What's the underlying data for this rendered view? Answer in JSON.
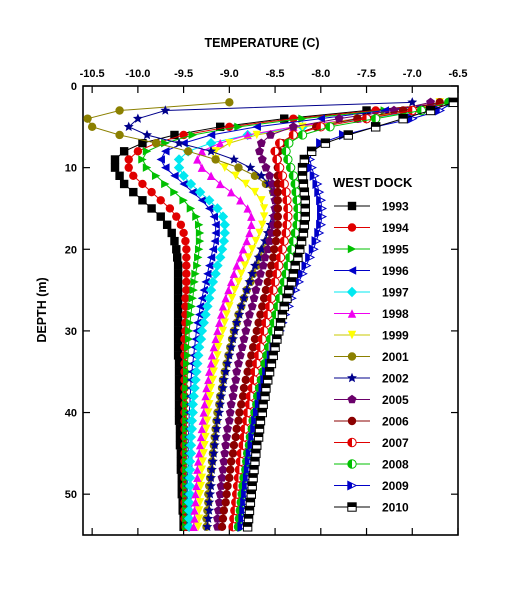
{
  "chart_data": {
    "type": "line",
    "xlabel": "TEMPERATURE (C)",
    "ylabel": "DEPTH (m)",
    "xlim": [
      -10.6,
      -6.5
    ],
    "ylim": [
      55,
      0
    ],
    "x_axis_position": "top",
    "y_inverted": true,
    "xticks": [
      -10.5,
      -10.0,
      -9.5,
      -9.0,
      -8.5,
      -8.0,
      -7.5,
      -7.0,
      -6.5
    ],
    "xtick_labels": [
      "-10.5",
      "-10.0",
      "-9.5",
      "-9.0",
      "-8.5",
      "-8.0",
      "-7.5",
      "-7.0",
      "-6.5"
    ],
    "yticks": [
      0,
      10,
      20,
      30,
      40,
      50
    ],
    "ytick_labels": [
      "0",
      "10",
      "20",
      "30",
      "40",
      "50"
    ],
    "grid": false,
    "legend_title": "WEST DOCK",
    "legend_position": "right",
    "depths": [
      2,
      3,
      4,
      5,
      6,
      7,
      8,
      9,
      10,
      11,
      12,
      13,
      14,
      15,
      16,
      17,
      18,
      19,
      20,
      21,
      22,
      23,
      24,
      25,
      26,
      27,
      28,
      29,
      30,
      31,
      32,
      33,
      34,
      35,
      36,
      37,
      38,
      39,
      40,
      41,
      42,
      43,
      44,
      45,
      46,
      47,
      48,
      49,
      50,
      51,
      52,
      53,
      54
    ],
    "series": [
      {
        "name": "1993",
        "color": "#000000",
        "marker": "square",
        "filled": true,
        "values": [
          -6.5,
          -7.5,
          -8.4,
          -9.1,
          -9.6,
          -9.95,
          -10.15,
          -10.25,
          -10.25,
          -10.2,
          -10.15,
          -10.05,
          -9.95,
          -9.85,
          -9.75,
          -9.68,
          -9.63,
          -9.6,
          -9.58,
          -9.57,
          -9.56,
          -9.56,
          -9.56,
          -9.56,
          -9.56,
          -9.56,
          -9.56,
          -9.56,
          -9.56,
          -9.56,
          -9.56,
          -9.56,
          -9.55,
          -9.55,
          -9.55,
          -9.55,
          -9.55,
          -9.55,
          -9.55,
          -9.55,
          -9.54,
          -9.54,
          -9.54,
          -9.53,
          -9.53,
          -9.53,
          -9.52,
          -9.52,
          -9.52,
          -9.51,
          -9.51,
          -9.5,
          -9.5
        ]
      },
      {
        "name": "1994",
        "color": "#e00000",
        "marker": "circle",
        "filled": true,
        "values": [
          -6.6,
          -7.4,
          -8.3,
          -9.0,
          -9.5,
          -9.8,
          -10.0,
          -10.1,
          -10.1,
          -10.05,
          -9.95,
          -9.85,
          -9.75,
          -9.65,
          -9.58,
          -9.53,
          -9.5,
          -9.48,
          -9.47,
          -9.47,
          -9.47,
          -9.47,
          -9.47,
          -9.47,
          -9.48,
          -9.48,
          -9.48,
          -9.48,
          -9.48,
          -9.49,
          -9.49,
          -9.49,
          -9.49,
          -9.49,
          -9.49,
          -9.49,
          -9.49,
          -9.49,
          -9.49,
          -9.49,
          -9.49,
          -9.49,
          -9.49,
          -9.49,
          -9.49,
          -9.49,
          -9.49,
          -9.49,
          -9.49,
          -9.49,
          -9.49,
          -9.49,
          -9.48
        ]
      },
      {
        "name": "1995",
        "color": "#00c000",
        "marker": "tri-right",
        "filled": true,
        "values": [
          -6.5,
          -7.3,
          -8.2,
          -8.9,
          -9.4,
          -9.7,
          -9.9,
          -9.95,
          -9.9,
          -9.8,
          -9.7,
          -9.6,
          -9.5,
          -9.42,
          -9.36,
          -9.33,
          -9.32,
          -9.32,
          -9.33,
          -9.34,
          -9.35,
          -9.37,
          -9.38,
          -9.39,
          -9.4,
          -9.41,
          -9.42,
          -9.43,
          -9.44,
          -9.44,
          -9.45,
          -9.45,
          -9.46,
          -9.46,
          -9.46,
          -9.47,
          -9.47,
          -9.47,
          -9.47,
          -9.47,
          -9.47,
          -9.47,
          -9.47,
          -9.47,
          -9.47,
          -9.47,
          -9.47,
          -9.47,
          -9.47,
          -9.47,
          -9.47,
          -9.47,
          -9.47
        ]
      },
      {
        "name": "1996",
        "color": "#0000c8",
        "marker": "tri-left",
        "filled": true,
        "values": [
          -6.6,
          -7.3,
          -8.0,
          -8.7,
          -9.2,
          -9.5,
          -9.7,
          -9.75,
          -9.7,
          -9.6,
          -9.5,
          -9.4,
          -9.3,
          -9.22,
          -9.17,
          -9.15,
          -9.15,
          -9.16,
          -9.18,
          -9.2,
          -9.22,
          -9.24,
          -9.26,
          -9.28,
          -9.3,
          -9.32,
          -9.33,
          -9.35,
          -9.36,
          -9.37,
          -9.38,
          -9.39,
          -9.4,
          -9.41,
          -9.42,
          -9.42,
          -9.43,
          -9.43,
          -9.44,
          -9.44,
          -9.44,
          -9.45,
          -9.45,
          -9.45,
          -9.45,
          -9.45,
          -9.46,
          -9.46,
          -9.46,
          -9.46,
          -9.46,
          -9.46,
          -9.46
        ]
      },
      {
        "name": "1997",
        "color": "#00e8f0",
        "marker": "diamond",
        "filled": true,
        "values": [
          -6.6,
          -6.9,
          -7.5,
          -8.2,
          -8.8,
          -9.2,
          -9.45,
          -9.55,
          -9.55,
          -9.5,
          -9.42,
          -9.32,
          -9.22,
          -9.13,
          -9.07,
          -9.05,
          -9.05,
          -9.06,
          -9.08,
          -9.1,
          -9.13,
          -9.15,
          -9.18,
          -9.2,
          -9.22,
          -9.24,
          -9.26,
          -9.28,
          -9.3,
          -9.31,
          -9.33,
          -9.34,
          -9.35,
          -9.36,
          -9.37,
          -9.38,
          -9.39,
          -9.4,
          -9.4,
          -9.41,
          -9.41,
          -9.42,
          -9.42,
          -9.42,
          -9.43,
          -9.43,
          -9.43,
          -9.43,
          -9.43,
          -9.44,
          -9.44,
          -9.44,
          -9.44
        ]
      },
      {
        "name": "1998",
        "color": "#f000f0",
        "marker": "tri-up",
        "filled": true,
        "values": [
          -6.7,
          -7.0,
          -7.6,
          -8.3,
          -8.8,
          -9.1,
          -9.3,
          -9.35,
          -9.3,
          -9.2,
          -9.1,
          -8.98,
          -8.88,
          -8.8,
          -8.76,
          -8.76,
          -8.78,
          -8.81,
          -8.85,
          -8.88,
          -8.92,
          -8.95,
          -8.98,
          -9.01,
          -9.04,
          -9.07,
          -9.09,
          -9.11,
          -9.13,
          -9.15,
          -9.17,
          -9.19,
          -9.2,
          -9.22,
          -9.23,
          -9.25,
          -9.26,
          -9.27,
          -9.28,
          -9.29,
          -9.3,
          -9.31,
          -9.32,
          -9.33,
          -9.34,
          -9.35,
          -9.35,
          -9.36,
          -9.37,
          -9.37,
          -9.38,
          -9.38,
          -9.39
        ]
      },
      {
        "name": "1999",
        "color": "#ffff00",
        "marker": "tri-down",
        "filled": true,
        "values": [
          -6.7,
          -7.0,
          -7.6,
          -8.2,
          -8.7,
          -9.0,
          -9.15,
          -9.15,
          -9.05,
          -8.93,
          -8.82,
          -8.72,
          -8.65,
          -8.62,
          -8.62,
          -8.64,
          -8.67,
          -8.71,
          -8.75,
          -8.79,
          -8.83,
          -8.87,
          -8.9,
          -8.94,
          -8.97,
          -9.0,
          -9.03,
          -9.05,
          -9.07,
          -9.1,
          -9.12,
          -9.13,
          -9.15,
          -9.17,
          -9.18,
          -9.2,
          -9.21,
          -9.22,
          -9.23,
          -9.24,
          -9.25,
          -9.26,
          -9.27,
          -9.28,
          -9.29,
          -9.3,
          -9.3,
          -9.31,
          -9.32,
          -9.32,
          -9.33,
          -9.33,
          -9.34
        ]
      },
      {
        "name": "2001",
        "color": "#8b8000",
        "marker": "circle",
        "filled": true,
        "values": [
          -9.0,
          -10.2,
          -10.55,
          -10.5,
          -10.2,
          -9.8,
          -9.45,
          -9.15,
          -8.9,
          -8.72,
          -8.6,
          -8.52,
          -8.48,
          -8.47,
          -8.49,
          -8.52,
          -8.55,
          -8.59,
          -8.63,
          -8.67,
          -8.7,
          -8.74,
          -8.77,
          -8.81,
          -8.84,
          -8.87,
          -8.9,
          -8.92,
          -8.95,
          -8.97,
          -8.99,
          -9.01,
          -9.03,
          -9.05,
          -9.07,
          -9.08,
          -9.1,
          -9.11,
          -9.13,
          -9.14,
          -9.15,
          -9.16,
          -9.17,
          -9.18,
          -9.19,
          -9.2,
          -9.21,
          -9.22,
          -9.23,
          -9.23,
          -9.24,
          -9.25,
          -9.25
        ]
      },
      {
        "name": "2002",
        "color": "#00008b",
        "marker": "star",
        "filled": true,
        "values": [
          -7.0,
          -9.7,
          -10.0,
          -10.1,
          -9.9,
          -9.55,
          -9.2,
          -8.95,
          -8.77,
          -8.65,
          -8.57,
          -8.52,
          -8.5,
          -8.5,
          -8.52,
          -8.55,
          -8.58,
          -8.61,
          -8.65,
          -8.68,
          -8.72,
          -8.75,
          -8.78,
          -8.81,
          -8.84,
          -8.87,
          -8.89,
          -8.92,
          -8.94,
          -8.96,
          -8.98,
          -9.0,
          -9.02,
          -9.04,
          -9.06,
          -9.07,
          -9.09,
          -9.1,
          -9.11,
          -9.13,
          -9.14,
          -9.15,
          -9.16,
          -9.17,
          -9.18,
          -9.19,
          -9.2,
          -9.2,
          -9.21,
          -9.22,
          -9.22,
          -9.23,
          -9.24
        ]
      },
      {
        "name": "2005",
        "color": "#6a006a",
        "marker": "pentagon",
        "filled": true,
        "values": [
          -6.8,
          -7.2,
          -7.8,
          -8.3,
          -8.55,
          -8.65,
          -8.67,
          -8.64,
          -8.6,
          -8.56,
          -8.53,
          -8.51,
          -8.5,
          -8.5,
          -8.51,
          -8.52,
          -8.54,
          -8.56,
          -8.58,
          -8.61,
          -8.63,
          -8.66,
          -8.68,
          -8.71,
          -8.73,
          -8.75,
          -8.78,
          -8.8,
          -8.82,
          -8.84,
          -8.86,
          -8.88,
          -8.9,
          -8.92,
          -8.93,
          -8.95,
          -8.96,
          -8.98,
          -8.99,
          -9.0,
          -9.02,
          -9.03,
          -9.04,
          -9.05,
          -9.06,
          -9.07,
          -9.08,
          -9.09,
          -9.1,
          -9.11,
          -9.12,
          -9.13,
          -9.13
        ]
      },
      {
        "name": "2006",
        "color": "#8b0000",
        "marker": "circle",
        "filled": true,
        "values": [
          -6.7,
          -7.1,
          -7.6,
          -8.05,
          -8.3,
          -8.42,
          -8.46,
          -8.47,
          -8.47,
          -8.47,
          -8.47,
          -8.47,
          -8.47,
          -8.47,
          -8.47,
          -8.47,
          -8.48,
          -8.49,
          -8.51,
          -8.52,
          -8.54,
          -8.56,
          -8.58,
          -8.6,
          -8.62,
          -8.64,
          -8.66,
          -8.68,
          -8.7,
          -8.72,
          -8.74,
          -8.76,
          -8.78,
          -8.8,
          -8.82,
          -8.84,
          -8.85,
          -8.87,
          -8.89,
          -8.9,
          -8.92,
          -8.93,
          -8.95,
          -8.96,
          -8.98,
          -8.99,
          -9.0,
          -9.02,
          -9.03,
          -9.04,
          -9.06,
          -9.07,
          -9.08
        ]
      },
      {
        "name": "2007",
        "color": "#e00000",
        "marker": "half-circle",
        "filled": false,
        "values": [
          -6.6,
          -7.0,
          -7.5,
          -8.0,
          -8.3,
          -8.45,
          -8.5,
          -8.48,
          -8.45,
          -8.42,
          -8.4,
          -8.38,
          -8.37,
          -8.36,
          -8.36,
          -8.37,
          -8.38,
          -8.4,
          -8.42,
          -8.44,
          -8.46,
          -8.48,
          -8.5,
          -8.52,
          -8.54,
          -8.56,
          -8.58,
          -8.6,
          -8.62,
          -8.64,
          -8.66,
          -8.68,
          -8.7,
          -8.72,
          -8.73,
          -8.75,
          -8.77,
          -8.78,
          -8.8,
          -8.81,
          -8.83,
          -8.84,
          -8.85,
          -8.87,
          -8.88,
          -8.89,
          -8.9,
          -8.91,
          -8.92,
          -8.93,
          -8.94,
          -8.95,
          -8.96
        ]
      },
      {
        "name": "2008",
        "color": "#00c000",
        "marker": "half-circle",
        "filled": false,
        "values": [
          -6.6,
          -6.9,
          -7.4,
          -7.9,
          -8.2,
          -8.35,
          -8.38,
          -8.36,
          -8.33,
          -8.3,
          -8.28,
          -8.27,
          -8.26,
          -8.25,
          -8.25,
          -8.26,
          -8.28,
          -8.3,
          -8.32,
          -8.34,
          -8.36,
          -8.38,
          -8.4,
          -8.42,
          -8.45,
          -8.47,
          -8.49,
          -8.51,
          -8.53,
          -8.55,
          -8.57,
          -8.59,
          -8.61,
          -8.63,
          -8.65,
          -8.67,
          -8.69,
          -8.7,
          -8.72,
          -8.74,
          -8.75,
          -8.77,
          -8.78,
          -8.8,
          -8.81,
          -8.82,
          -8.84,
          -8.85,
          -8.86,
          -8.87,
          -8.88,
          -8.89,
          -8.9
        ]
      },
      {
        "name": "2009",
        "color": "#0000c8",
        "marker": "half-tri-right",
        "filled": false,
        "values": [
          -6.55,
          -6.7,
          -7.0,
          -7.4,
          -7.75,
          -8.0,
          -8.1,
          -8.12,
          -8.1,
          -8.07,
          -8.04,
          -8.02,
          -8.0,
          -7.99,
          -7.99,
          -8.0,
          -8.02,
          -8.05,
          -8.08,
          -8.12,
          -8.16,
          -8.2,
          -8.24,
          -8.28,
          -8.32,
          -8.35,
          -8.39,
          -8.42,
          -8.45,
          -8.48,
          -8.51,
          -8.54,
          -8.56,
          -8.59,
          -8.61,
          -8.63,
          -8.65,
          -8.67,
          -8.69,
          -8.71,
          -8.72,
          -8.74,
          -8.75,
          -8.77,
          -8.78,
          -8.79,
          -8.8,
          -8.81,
          -8.82,
          -8.83,
          -8.84,
          -8.85,
          -8.86
        ]
      },
      {
        "name": "2010",
        "color": "#000000",
        "marker": "half-square",
        "filled": false,
        "values": [
          -6.55,
          -6.8,
          -7.1,
          -7.4,
          -7.7,
          -7.95,
          -8.1,
          -8.18,
          -8.2,
          -8.2,
          -8.19,
          -8.18,
          -8.17,
          -8.17,
          -8.17,
          -8.18,
          -8.19,
          -8.21,
          -8.23,
          -8.25,
          -8.28,
          -8.3,
          -8.32,
          -8.35,
          -8.37,
          -8.4,
          -8.42,
          -8.44,
          -8.46,
          -8.48,
          -8.5,
          -8.52,
          -8.54,
          -8.56,
          -8.58,
          -8.6,
          -8.61,
          -8.63,
          -8.64,
          -8.66,
          -8.67,
          -8.68,
          -8.7,
          -8.71,
          -8.72,
          -8.73,
          -8.74,
          -8.75,
          -8.76,
          -8.77,
          -8.78,
          -8.79,
          -8.8
        ]
      }
    ]
  }
}
